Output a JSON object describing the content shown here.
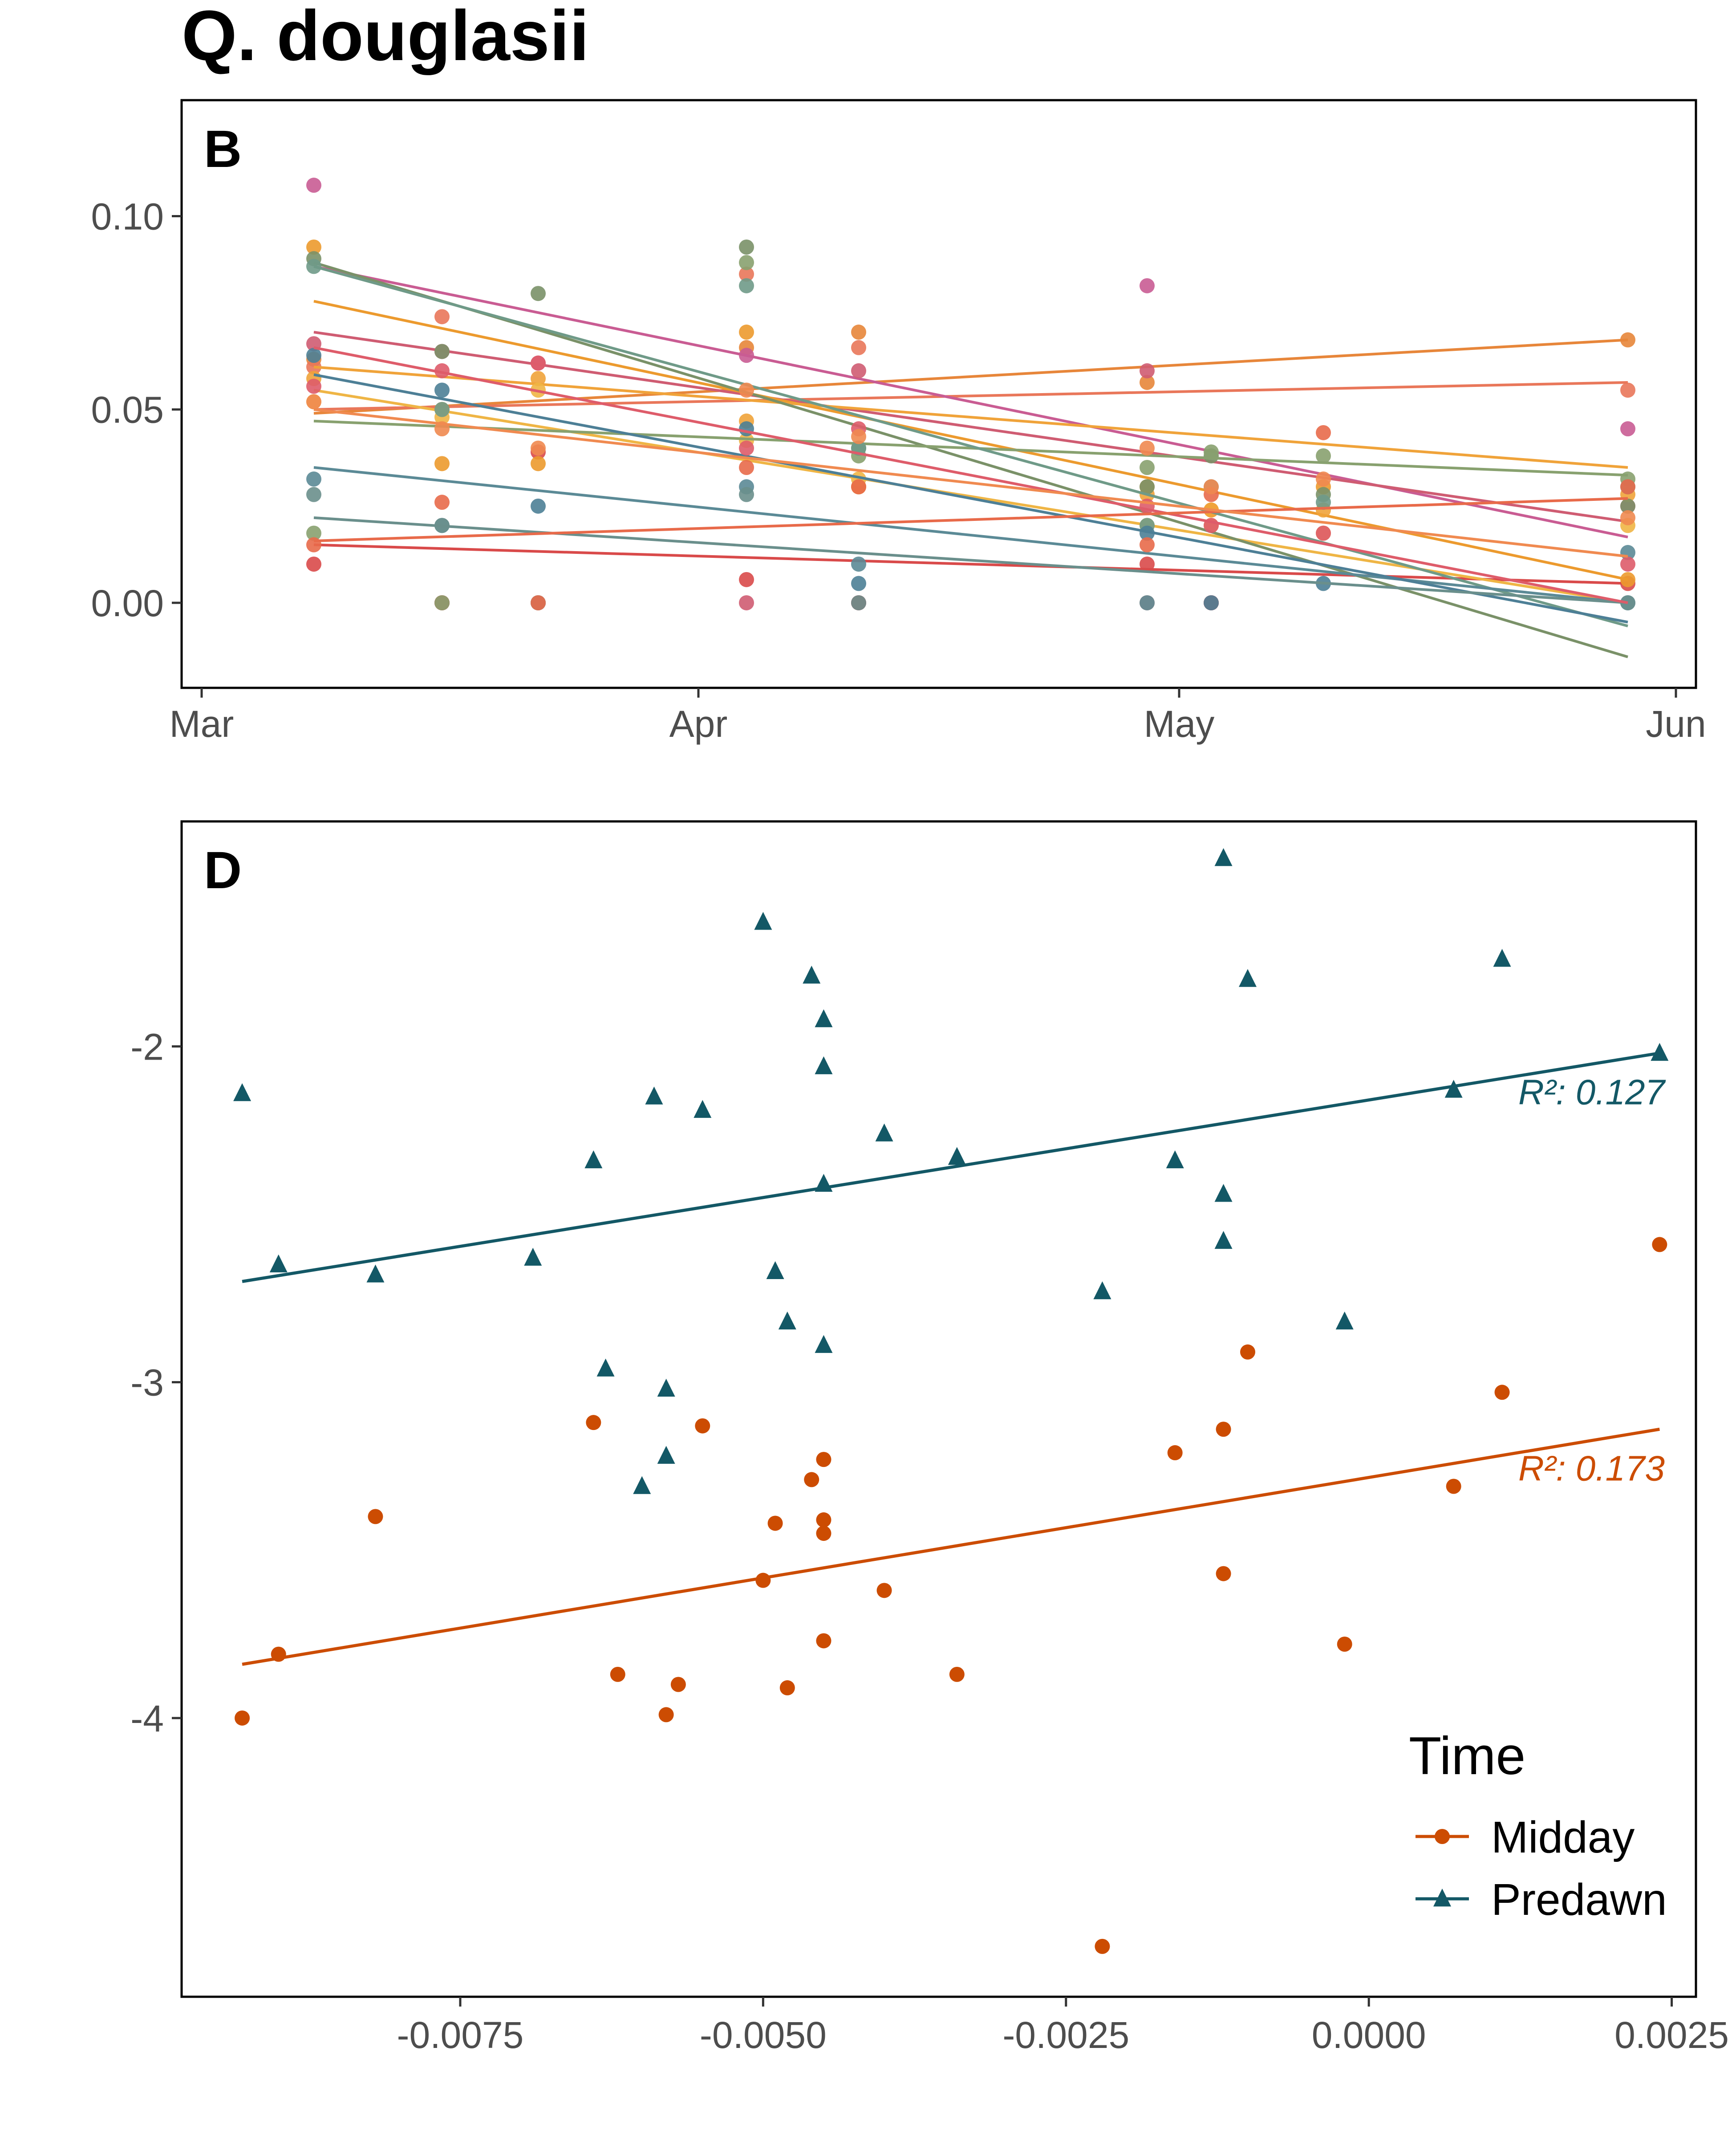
{
  "title": "Q. douglasii",
  "chart_data": [
    {
      "panel_label": "B",
      "type": "line",
      "x_scale": "date",
      "xlim": [
        "2019-03-01",
        "2019-06-01"
      ],
      "ylim": [
        -0.022,
        0.13
      ],
      "x_ticks": [
        {
          "value": "2019-03-01",
          "label": "Mar"
        },
        {
          "value": "2019-04-01",
          "label": "Apr"
        },
        {
          "value": "2019-05-01",
          "label": "May"
        },
        {
          "value": "2019-06-01",
          "label": "Jun"
        }
      ],
      "y_ticks": [
        {
          "value": 0.0,
          "label": "0.00"
        },
        {
          "value": 0.05,
          "label": "0.05"
        },
        {
          "value": 0.1,
          "label": "0.10"
        }
      ],
      "grid": false,
      "sample_dates": [
        "2019-03-08",
        "2019-03-16",
        "2019-03-22",
        "2019-04-04",
        "2019-04-11",
        "2019-04-29",
        "2019-05-03",
        "2019-05-10",
        "2019-05-29"
      ],
      "series": [
        {
          "color": "#e7863a",
          "points": [
            [
              0.063,
              0.0,
              0.0,
              0.066,
              0.07,
              0.057,
              0.0,
              0.0,
              0.068
            ]
          ],
          "fit": [
            0.049,
            0.068
          ]
        },
        {
          "color": "#e9775a",
          "points": [
            [
              0.061,
              0.074,
              0.0,
              0.085,
              0.066,
              0.0,
              0.0,
              0.0,
              0.055
            ]
          ],
          "fit": [
            0.05,
            0.057
          ]
        },
        {
          "color": "#c95c93",
          "points": [
            [
              0.108,
              0.0,
              0.0,
              0.064,
              0.0,
              0.082,
              0.0,
              0.0,
              0.045
            ]
          ],
          "fit": [
            0.087,
            0.017
          ]
        },
        {
          "color": "#cf5c72",
          "points": [
            [
              0.067,
              0.065,
              0.062,
              0.0,
              0.06,
              0.06,
              0.0,
              0.0,
              0.025
            ]
          ],
          "fit": [
            0.07,
            0.021
          ]
        },
        {
          "color": "#d94a4a",
          "points": [
            [
              0.01,
              0.0,
              0.039,
              0.006,
              0.0,
              0.01,
              0.0,
              0.0,
              0.005
            ]
          ],
          "fit": [
            0.015,
            0.005
          ]
        },
        {
          "color": "#ec9a2e",
          "points": [
            [
              0.092,
              0.036,
              0.036,
              0.07,
              0.03,
              0.03,
              0.024,
              0.03,
              0.006
            ]
          ],
          "fit": [
            0.078,
            0.006
          ]
        },
        {
          "color": "#f0a33a",
          "points": [
            [
              0.058,
              0.05,
              0.058,
              0.047,
              0.03,
              0.028,
              0.024,
              0.024,
              0.028
            ]
          ],
          "fit": [
            0.061,
            0.035
          ]
        },
        {
          "color": "#efb545",
          "points": [
            [
              0.052,
              0.048,
              0.055,
              0.042,
              0.032,
              0.02,
              0.02,
              0.018,
              0.02
            ]
          ],
          "fit": [
            0.055,
            0.0
          ]
        },
        {
          "color": "#7a9168",
          "points": [
            [
              0.089,
              0.065,
              0.08,
              0.092,
              0.04,
              0.03,
              0.038,
              0.028,
              0.025
            ]
          ],
          "fit": [
            0.088,
            -0.014
          ]
        },
        {
          "color": "#88a16f",
          "points": [
            [
              0.018,
              0.0,
              0.0,
              0.088,
              0.038,
              0.035,
              0.039,
              0.038,
              0.032
            ]
          ],
          "fit": [
            0.047,
            0.033
          ]
        },
        {
          "color": "#6f9a88",
          "points": [
            [
              0.087,
              0.05,
              0.0,
              0.082,
              0.04,
              0.02,
              0.03,
              0.026,
              0.03
            ]
          ],
          "fit": [
            0.087,
            -0.006
          ]
        },
        {
          "color": "#5b8a96",
          "points": [
            [
              0.032,
              0.02,
              0.0,
              0.03,
              0.01,
              0.0,
              0.0,
              0.0,
              0.013
            ]
          ],
          "fit": [
            0.035,
            0.0
          ]
        },
        {
          "color": "#4d7f96",
          "points": [
            [
              0.064,
              0.055,
              0.025,
              0.045,
              0.005,
              0.018,
              0.0,
              0.005,
              0.0
            ]
          ],
          "fit": [
            0.059,
            -0.005
          ]
        },
        {
          "color": "#6a8f8c",
          "points": [
            [
              0.028,
              0.02,
              0.0,
              0.028,
              0.0,
              0.0,
              0.0,
              0.0,
              0.0
            ]
          ],
          "fit": [
            0.022,
            0.0
          ]
        },
        {
          "color": "#de5c6a",
          "points": [
            [
              0.056,
              0.06,
              0.062,
              0.04,
              0.045,
              0.025,
              0.02,
              0.018,
              0.01
            ]
          ],
          "fit": [
            0.066,
            0.0
          ]
        },
        {
          "color": "#e86a4a",
          "points": [
            [
              0.015,
              0.026,
              0.0,
              0.035,
              0.03,
              0.015,
              0.028,
              0.044,
              0.03
            ]
          ],
          "fit": [
            0.016,
            0.027
          ]
        },
        {
          "color": "#f08a50",
          "points": [
            [
              0.052,
              0.045,
              0.04,
              0.055,
              0.043,
              0.04,
              0.03,
              0.032,
              0.022
            ]
          ],
          "fit": [
            0.05,
            0.012
          ]
        }
      ]
    },
    {
      "panel_label": "D",
      "type": "scatter",
      "xlim": [
        -0.0098,
        0.0027
      ],
      "ylim": [
        -4.83,
        -1.33
      ],
      "x_ticks": [
        {
          "value": -0.0075,
          "label": "-0.0075"
        },
        {
          "value": -0.005,
          "label": "-0.0050"
        },
        {
          "value": -0.0025,
          "label": "-0.0025"
        },
        {
          "value": 0.0,
          "label": "0.0000"
        },
        {
          "value": 0.0025,
          "label": "0.0025"
        }
      ],
      "y_ticks": [
        {
          "value": -2,
          "label": "-2"
        },
        {
          "value": -3,
          "label": "-3"
        },
        {
          "value": -4,
          "label": "-4"
        }
      ],
      "grid": false,
      "legend": {
        "title": "Time",
        "position": "bottom-right"
      },
      "series": [
        {
          "name": "Midday",
          "marker": "circle",
          "color": "#cc4c02",
          "fit": [
            [
              -0.0093,
              -3.84
            ],
            [
              0.0024,
              -3.14
            ]
          ],
          "r2_label": "R²: 0.173",
          "points": [
            [
              -0.0093,
              -4.0
            ],
            [
              -0.009,
              -3.81
            ],
            [
              -0.0082,
              -3.4
            ],
            [
              -0.0064,
              -3.12
            ],
            [
              -0.0062,
              -3.87
            ],
            [
              -0.0058,
              -3.99
            ],
            [
              -0.0057,
              -3.9
            ],
            [
              -0.0055,
              -3.13
            ],
            [
              -0.005,
              -3.59
            ],
            [
              -0.0049,
              -3.42
            ],
            [
              -0.0048,
              -3.91
            ],
            [
              -0.0046,
              -3.29
            ],
            [
              -0.0045,
              -3.23
            ],
            [
              -0.0045,
              -3.45
            ],
            [
              -0.0045,
              -3.41
            ],
            [
              -0.0045,
              -3.77
            ],
            [
              -0.004,
              -3.62
            ],
            [
              -0.0034,
              -3.87
            ],
            [
              -0.0022,
              -4.68
            ],
            [
              -0.0016,
              -3.21
            ],
            [
              -0.0012,
              -3.14
            ],
            [
              -0.0012,
              -3.57
            ],
            [
              -0.001,
              -2.91
            ],
            [
              -0.0002,
              -3.78
            ],
            [
              0.0007,
              -3.31
            ],
            [
              0.0011,
              -3.03
            ],
            [
              0.0024,
              -2.59
            ]
          ]
        },
        {
          "name": "Predawn",
          "marker": "triangle",
          "color": "#135866",
          "fit": [
            [
              -0.0093,
              -2.7
            ],
            [
              0.0024,
              -2.02
            ]
          ],
          "r2_label": "R²: 0.127",
          "points": [
            [
              -0.0093,
              -2.14
            ],
            [
              -0.009,
              -2.65
            ],
            [
              -0.0082,
              -2.68
            ],
            [
              -0.0069,
              -2.63
            ],
            [
              -0.0064,
              -2.34
            ],
            [
              -0.0063,
              -2.96
            ],
            [
              -0.006,
              -3.31
            ],
            [
              -0.0059,
              -2.15
            ],
            [
              -0.0058,
              -3.02
            ],
            [
              -0.0058,
              -3.22
            ],
            [
              -0.0055,
              -2.19
            ],
            [
              -0.005,
              -1.63
            ],
            [
              -0.0049,
              -2.67
            ],
            [
              -0.0048,
              -2.82
            ],
            [
              -0.0046,
              -1.79
            ],
            [
              -0.0045,
              -1.92
            ],
            [
              -0.0045,
              -2.41
            ],
            [
              -0.0045,
              -2.06
            ],
            [
              -0.0045,
              -2.89
            ],
            [
              -0.004,
              -2.26
            ],
            [
              -0.0034,
              -2.33
            ],
            [
              -0.0022,
              -2.73
            ],
            [
              -0.0016,
              -2.34
            ],
            [
              -0.0012,
              -2.44
            ],
            [
              -0.0012,
              -2.58
            ],
            [
              -0.0012,
              -1.44
            ],
            [
              -0.001,
              -1.8
            ],
            [
              -0.0002,
              -2.82
            ],
            [
              0.0007,
              -2.13
            ],
            [
              0.0011,
              -1.74
            ],
            [
              0.0024,
              -2.02
            ]
          ]
        }
      ]
    }
  ]
}
